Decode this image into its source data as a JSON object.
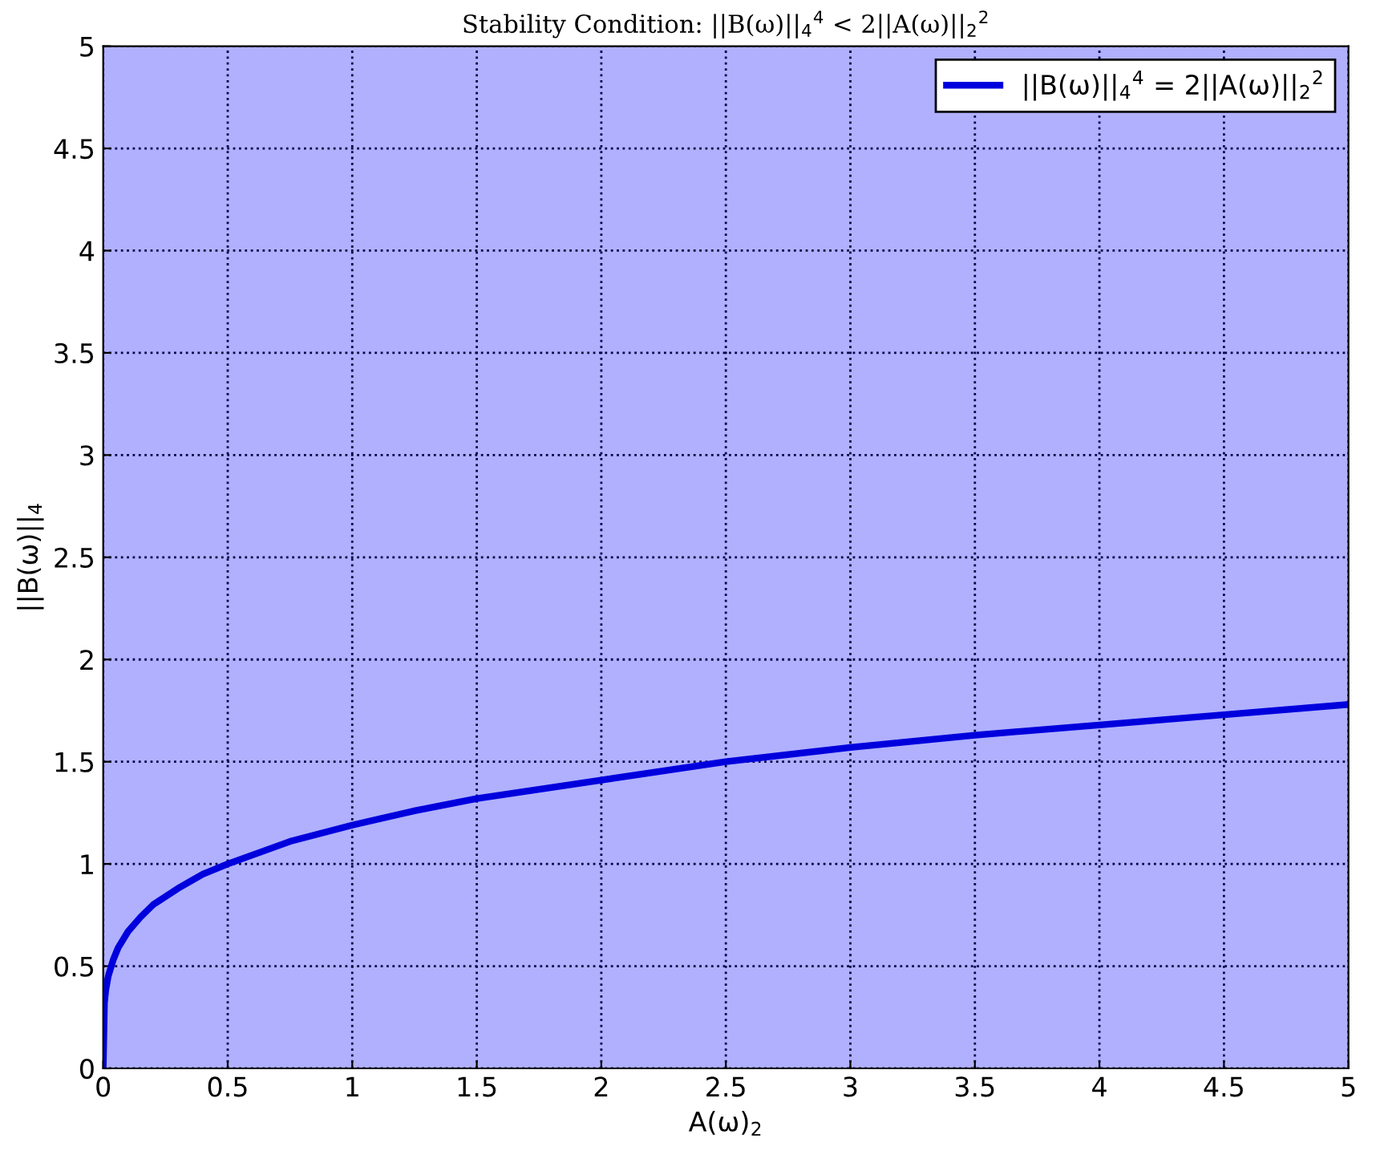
{
  "chart_data": {
    "type": "line",
    "title": "Stability Condition: ||B(ω)||$_{4}$$^{4}$ < 2||A(ω)||$_{2}$$^{2}$",
    "xlabel": "A(ω)$_{2}$",
    "ylabel": "||B(ω)||$_{4}$",
    "x": [
      0,
      0.005,
      0.01,
      0.02,
      0.04,
      0.06,
      0.1,
      0.15,
      0.2,
      0.3,
      0.4,
      0.5,
      0.75,
      1,
      1.25,
      1.5,
      2,
      2.5,
      3,
      3.5,
      4,
      4.5,
      5
    ],
    "series": [
      {
        "name": "||B(ω)||$_{4}$$^{4}$ = 2||A(ω)||$_{2}$$^{2}$",
        "color": "#0000dd",
        "values": [
          0,
          0.32,
          0.38,
          0.45,
          0.53,
          0.59,
          0.67,
          0.74,
          0.8,
          0.88,
          0.95,
          1,
          1.11,
          1.19,
          1.26,
          1.32,
          1.41,
          1.5,
          1.57,
          1.63,
          1.68,
          1.73,
          1.78
        ]
      }
    ],
    "xlim": [
      0,
      5
    ],
    "ylim": [
      0,
      5
    ],
    "xticks": [
      0,
      0.5,
      1,
      1.5,
      2,
      2.5,
      3,
      3.5,
      4,
      4.5,
      5
    ],
    "yticks": [
      0,
      0.5,
      1,
      1.5,
      2,
      2.5,
      3,
      3.5,
      4,
      4.5,
      5
    ],
    "grid": true,
    "legend": "top right",
    "line_style": "solid",
    "marker": "none"
  }
}
